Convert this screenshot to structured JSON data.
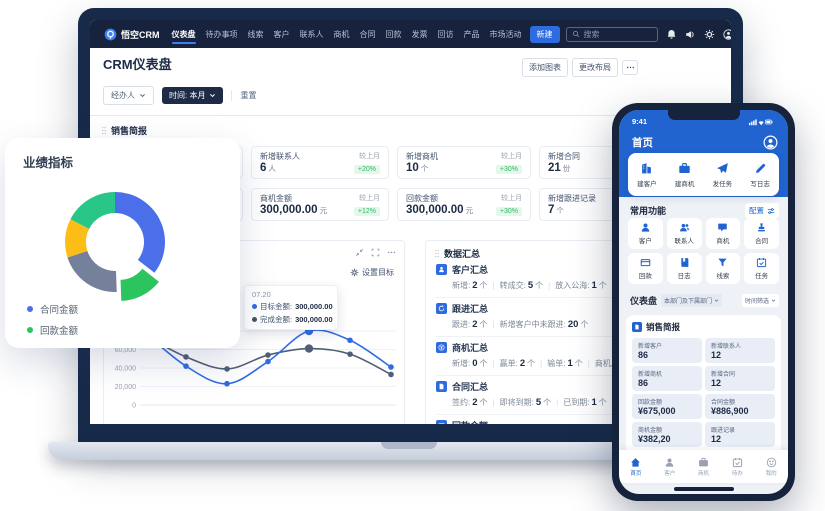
{
  "colors": {
    "accent_blue": "#2b65d9",
    "navy": "#17223c",
    "green": "#30b860",
    "red": "#e4604f"
  },
  "app": {
    "navbar": {
      "logo_text": "悟空CRM",
      "menu": [
        {
          "label": "仪表盘",
          "active": true
        },
        {
          "label": "待办事项",
          "active": false
        },
        {
          "label": "线索",
          "active": false
        },
        {
          "label": "客户",
          "active": false
        },
        {
          "label": "联系人",
          "active": false
        },
        {
          "label": "商机",
          "active": false
        },
        {
          "label": "合同",
          "active": false
        },
        {
          "label": "回款",
          "active": false
        },
        {
          "label": "发票",
          "active": false
        },
        {
          "label": "回访",
          "active": false
        },
        {
          "label": "产品",
          "active": false
        },
        {
          "label": "市场活动",
          "active": false
        }
      ],
      "new_button": "新建",
      "search_placeholder": "搜索"
    },
    "page": {
      "title": "CRM仪表盘",
      "add_chart": "添加图表",
      "change_layout": "更改布局"
    },
    "filters": {
      "owner": "经办人",
      "time": "时间: 本月",
      "reset": "重置"
    },
    "sales_brief": {
      "title": "销售简报",
      "compare_label": "较上月",
      "cards": [
        {
          "label": "",
          "value": "",
          "unit": "",
          "delta": "-10%",
          "trend": "down"
        },
        {
          "label": "新增联系人",
          "value": "6",
          "unit": "人",
          "delta": "+20%",
          "trend": "up"
        },
        {
          "label": "新增商机",
          "value": "10",
          "unit": "个",
          "delta": "+30%",
          "trend": "up"
        },
        {
          "label": "新增合同",
          "value": "21",
          "unit": "份",
          "delta": "",
          "trend": "none"
        },
        {
          "label": "",
          "value": "",
          "unit": "",
          "delta": "-10%",
          "trend": "down"
        },
        {
          "label": "商机金额",
          "value": "300,000.00",
          "unit": "元",
          "delta": "+12%",
          "trend": "up"
        },
        {
          "label": "回款金额",
          "value": "300,000.00",
          "unit": "元",
          "delta": "+30%",
          "trend": "up"
        },
        {
          "label": "新增跟进记录",
          "value": "7",
          "unit": "个",
          "delta": "",
          "trend": "none"
        }
      ]
    },
    "goal_chart": {
      "title": "合同金额目标及完成情况",
      "set_goal_label": "设置目标",
      "tooltip": {
        "date": "07.20",
        "rows": [
          {
            "label": "目标金额",
            "value": "300,000.00",
            "color": "#2f6be4"
          },
          {
            "label": "完成金额",
            "value": "300,000.00",
            "color": "#44516b"
          }
        ]
      },
      "chart_data": {
        "type": "line",
        "x": [
          1,
          2,
          3,
          4,
          5,
          6,
          7
        ],
        "series": [
          {
            "name": "目标金额",
            "color": "#2f6be4",
            "values": [
              78000,
              42000,
              23000,
              47000,
              80000,
              70000,
              41000
            ]
          },
          {
            "name": "完成金额",
            "color": "#515e78",
            "values": [
              75000,
              52000,
              39000,
              54000,
              61000,
              55000,
              33000
            ]
          }
        ],
        "ylim": [
          0,
          80000
        ],
        "yticks": [
          0,
          20000,
          40000,
          60000
        ],
        "highlight_index": 4
      }
    },
    "data_summary": {
      "title": "数据汇总",
      "rows": [
        {
          "icon": "user",
          "title": "客户汇总",
          "parts": [
            {
              "label": "新增",
              "value": "2",
              "unit": "个"
            },
            {
              "label": "转成交",
              "value": "5",
              "unit": "个"
            },
            {
              "label": "放入公海",
              "value": "1",
              "unit": "个"
            },
            {
              "label": "公海池领取",
              "value": "",
              "unit": ""
            }
          ]
        },
        {
          "icon": "refresh",
          "title": "跟进汇总",
          "parts": [
            {
              "label": "跟进",
              "value": "2",
              "unit": "个"
            },
            {
              "label": "新增客户中未跟进",
              "value": "20",
              "unit": "个"
            }
          ]
        },
        {
          "icon": "yen",
          "title": "商机汇总",
          "parts": [
            {
              "label": "新增",
              "value": "0",
              "unit": "个"
            },
            {
              "label": "赢单",
              "value": "2",
              "unit": "个"
            },
            {
              "label": "输单",
              "value": "1",
              "unit": "个"
            },
            {
              "label": "商机总金额",
              "value": "0",
              "unit": ""
            }
          ]
        },
        {
          "icon": "doc",
          "title": "合同汇总",
          "parts": [
            {
              "label": "签约",
              "value": "2",
              "unit": "个"
            },
            {
              "label": "即将到期",
              "value": "5",
              "unit": "个"
            },
            {
              "label": "已到期",
              "value": "1",
              "unit": "个"
            },
            {
              "label": "合同金额",
              "value": "",
              "unit": ""
            }
          ]
        },
        {
          "icon": "card",
          "title": "回款金额",
          "parts": []
        }
      ]
    }
  },
  "kpi_card": {
    "title": "业绩指标",
    "legend": [
      {
        "label": "合同金额",
        "color": "#4a6fe9"
      },
      {
        "label": "回款金额",
        "color": "#2bc45f"
      }
    ],
    "chart_data": {
      "type": "pie",
      "segments": [
        {
          "color": "#4a6fe9",
          "deg": 128,
          "offset": 0
        },
        {
          "color": "#2bc45f",
          "deg": 50,
          "offset": 10
        },
        {
          "color": "#75809b",
          "deg": 74,
          "offset": 0
        },
        {
          "color": "#fcbe16",
          "deg": 45,
          "offset": 0
        },
        {
          "color": "#28c787",
          "deg": 63,
          "offset": 0
        }
      ]
    }
  },
  "phone": {
    "status_time": "9:41",
    "header_title": "首页",
    "quick_actions": [
      {
        "icon": "building",
        "label": "建客户"
      },
      {
        "icon": "briefcase",
        "label": "建商机"
      },
      {
        "icon": "send",
        "label": "发任务"
      },
      {
        "icon": "pen",
        "label": "写日志"
      }
    ],
    "common": {
      "title": "常用功能",
      "config_label": "配置",
      "items": [
        {
          "icon": "user",
          "label": "客户"
        },
        {
          "icon": "users",
          "label": "联系人"
        },
        {
          "icon": "chat",
          "label": "商机"
        },
        {
          "icon": "stamp",
          "label": "合同"
        },
        {
          "icon": "card",
          "label": "回款"
        },
        {
          "icon": "book",
          "label": "日志"
        },
        {
          "icon": "funnel",
          "label": "线索"
        },
        {
          "icon": "calcheck",
          "label": "任务"
        }
      ]
    },
    "dashboard": {
      "title": "仪表盘",
      "dept_filter": "本部门及下属部门",
      "time_filter": "时间筛选"
    },
    "brief": {
      "title": "销售简报",
      "stats": [
        {
          "label": "新增客户",
          "value": "86"
        },
        {
          "label": "新增联系人",
          "value": "12"
        },
        {
          "label": "新增商机",
          "value": "86"
        },
        {
          "label": "新增合同",
          "value": "12"
        },
        {
          "label": "回款金额",
          "value": "¥675,000"
        },
        {
          "label": "合同金额",
          "value": "¥886,900"
        },
        {
          "label": "商机金额",
          "value": "¥382,20"
        },
        {
          "label": "跟进记录",
          "value": "12"
        }
      ]
    },
    "tabbar": [
      {
        "icon": "home",
        "label": "首页",
        "active": true
      },
      {
        "icon": "user",
        "label": "客户",
        "active": false
      },
      {
        "icon": "briefcase",
        "label": "商机",
        "active": false
      },
      {
        "icon": "calcheck",
        "label": "待办",
        "active": false
      },
      {
        "icon": "smile",
        "label": "我的",
        "active": false
      }
    ]
  }
}
